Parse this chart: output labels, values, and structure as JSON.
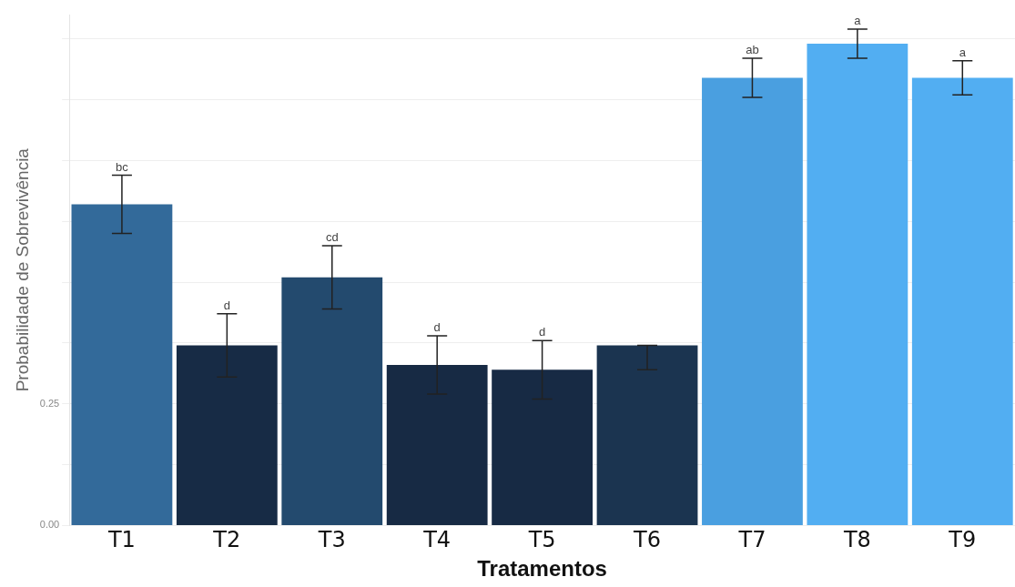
{
  "chart_data": {
    "type": "bar",
    "xlabel": "Tratamentos",
    "ylabel": "Probabilidade de Sobrevivência",
    "categories": [
      "T1",
      "T2",
      "T3",
      "T4",
      "T5",
      "T6",
      "T7",
      "T8",
      "T9"
    ],
    "values": [
      0.66,
      0.37,
      0.51,
      0.33,
      0.32,
      0.37,
      0.92,
      0.99,
      0.92
    ],
    "errors": [
      0.06,
      0.065,
      0.065,
      0.06,
      0.06,
      [
        0.32,
        0.37
      ],
      0.04,
      0.03,
      0.035
    ],
    "colors": [
      "#336a9a",
      "#172b45",
      "#234a6e",
      "#172a44",
      "#172a44",
      "#1b3450",
      "#4a9fe0",
      "#52aef2",
      "#52aef2"
    ],
    "ylim": [
      0,
      1.05
    ],
    "yticks": [
      {
        "value": 0,
        "label": "0.00"
      },
      {
        "value": 0.125,
        "label": null
      },
      {
        "value": 0.25,
        "label": "0.25"
      },
      {
        "value": 0.375,
        "label": null
      },
      {
        "value": 0.5,
        "label": null
      },
      {
        "value": 0.625,
        "label": null
      },
      {
        "value": 0.75,
        "label": null
      },
      {
        "value": 0.875,
        "label": null
      },
      {
        "value": 1,
        "label": null
      }
    ],
    "grid": "y",
    "annotations": [
      {
        "text": "bc",
        "x": "T1",
        "y": 0.72
      },
      {
        "text": "d",
        "x": "T2",
        "y": 0.435
      },
      {
        "text": "cd",
        "x": "T3",
        "y": 0.575
      },
      {
        "text": "d",
        "x": "T4",
        "y": 0.39
      },
      {
        "text": "d",
        "x": "T5",
        "y": 0.38
      },
      {
        "text": "ab",
        "x": "T7",
        "y": 0.96
      },
      {
        "text": "a",
        "x": "T8",
        "y": 1.02
      },
      {
        "text": "a",
        "x": "T9",
        "y": 0.955
      }
    ]
  }
}
